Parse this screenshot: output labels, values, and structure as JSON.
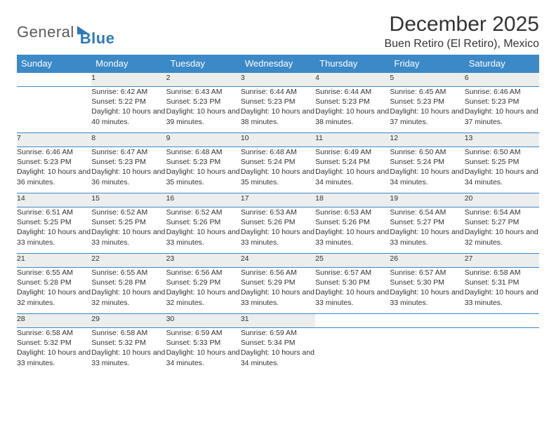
{
  "brand": {
    "part1": "General",
    "part2": "Blue"
  },
  "title": "December 2025",
  "location": "Buen Retiro (El Retiro), Mexico",
  "colors": {
    "header_bg": "#3b89c7",
    "daynum_bg": "#eceded",
    "rule": "#3b89c7",
    "text": "#333333",
    "logo_gray": "#5a5a5a",
    "logo_blue": "#2e79b8"
  },
  "weekdays": [
    "Sunday",
    "Monday",
    "Tuesday",
    "Wednesday",
    "Thursday",
    "Friday",
    "Saturday"
  ],
  "weeks": [
    [
      null,
      {
        "n": "1",
        "sr": "6:42 AM",
        "ss": "5:22 PM",
        "dl": "10 hours and 40 minutes."
      },
      {
        "n": "2",
        "sr": "6:43 AM",
        "ss": "5:23 PM",
        "dl": "10 hours and 39 minutes."
      },
      {
        "n": "3",
        "sr": "6:44 AM",
        "ss": "5:23 PM",
        "dl": "10 hours and 38 minutes."
      },
      {
        "n": "4",
        "sr": "6:44 AM",
        "ss": "5:23 PM",
        "dl": "10 hours and 38 minutes."
      },
      {
        "n": "5",
        "sr": "6:45 AM",
        "ss": "5:23 PM",
        "dl": "10 hours and 37 minutes."
      },
      {
        "n": "6",
        "sr": "6:46 AM",
        "ss": "5:23 PM",
        "dl": "10 hours and 37 minutes."
      }
    ],
    [
      {
        "n": "7",
        "sr": "6:46 AM",
        "ss": "5:23 PM",
        "dl": "10 hours and 36 minutes."
      },
      {
        "n": "8",
        "sr": "6:47 AM",
        "ss": "5:23 PM",
        "dl": "10 hours and 36 minutes."
      },
      {
        "n": "9",
        "sr": "6:48 AM",
        "ss": "5:23 PM",
        "dl": "10 hours and 35 minutes."
      },
      {
        "n": "10",
        "sr": "6:48 AM",
        "ss": "5:24 PM",
        "dl": "10 hours and 35 minutes."
      },
      {
        "n": "11",
        "sr": "6:49 AM",
        "ss": "5:24 PM",
        "dl": "10 hours and 34 minutes."
      },
      {
        "n": "12",
        "sr": "6:50 AM",
        "ss": "5:24 PM",
        "dl": "10 hours and 34 minutes."
      },
      {
        "n": "13",
        "sr": "6:50 AM",
        "ss": "5:25 PM",
        "dl": "10 hours and 34 minutes."
      }
    ],
    [
      {
        "n": "14",
        "sr": "6:51 AM",
        "ss": "5:25 PM",
        "dl": "10 hours and 33 minutes."
      },
      {
        "n": "15",
        "sr": "6:52 AM",
        "ss": "5:25 PM",
        "dl": "10 hours and 33 minutes."
      },
      {
        "n": "16",
        "sr": "6:52 AM",
        "ss": "5:26 PM",
        "dl": "10 hours and 33 minutes."
      },
      {
        "n": "17",
        "sr": "6:53 AM",
        "ss": "5:26 PM",
        "dl": "10 hours and 33 minutes."
      },
      {
        "n": "18",
        "sr": "6:53 AM",
        "ss": "5:26 PM",
        "dl": "10 hours and 33 minutes."
      },
      {
        "n": "19",
        "sr": "6:54 AM",
        "ss": "5:27 PM",
        "dl": "10 hours and 33 minutes."
      },
      {
        "n": "20",
        "sr": "6:54 AM",
        "ss": "5:27 PM",
        "dl": "10 hours and 32 minutes."
      }
    ],
    [
      {
        "n": "21",
        "sr": "6:55 AM",
        "ss": "5:28 PM",
        "dl": "10 hours and 32 minutes."
      },
      {
        "n": "22",
        "sr": "6:55 AM",
        "ss": "5:28 PM",
        "dl": "10 hours and 32 minutes."
      },
      {
        "n": "23",
        "sr": "6:56 AM",
        "ss": "5:29 PM",
        "dl": "10 hours and 32 minutes."
      },
      {
        "n": "24",
        "sr": "6:56 AM",
        "ss": "5:29 PM",
        "dl": "10 hours and 33 minutes."
      },
      {
        "n": "25",
        "sr": "6:57 AM",
        "ss": "5:30 PM",
        "dl": "10 hours and 33 minutes."
      },
      {
        "n": "26",
        "sr": "6:57 AM",
        "ss": "5:30 PM",
        "dl": "10 hours and 33 minutes."
      },
      {
        "n": "27",
        "sr": "6:58 AM",
        "ss": "5:31 PM",
        "dl": "10 hours and 33 minutes."
      }
    ],
    [
      {
        "n": "28",
        "sr": "6:58 AM",
        "ss": "5:32 PM",
        "dl": "10 hours and 33 minutes."
      },
      {
        "n": "29",
        "sr": "6:58 AM",
        "ss": "5:32 PM",
        "dl": "10 hours and 33 minutes."
      },
      {
        "n": "30",
        "sr": "6:59 AM",
        "ss": "5:33 PM",
        "dl": "10 hours and 34 minutes."
      },
      {
        "n": "31",
        "sr": "6:59 AM",
        "ss": "5:34 PM",
        "dl": "10 hours and 34 minutes."
      },
      null,
      null,
      null
    ]
  ],
  "labels": {
    "sunrise": "Sunrise:",
    "sunset": "Sunset:",
    "daylight": "Daylight:"
  }
}
